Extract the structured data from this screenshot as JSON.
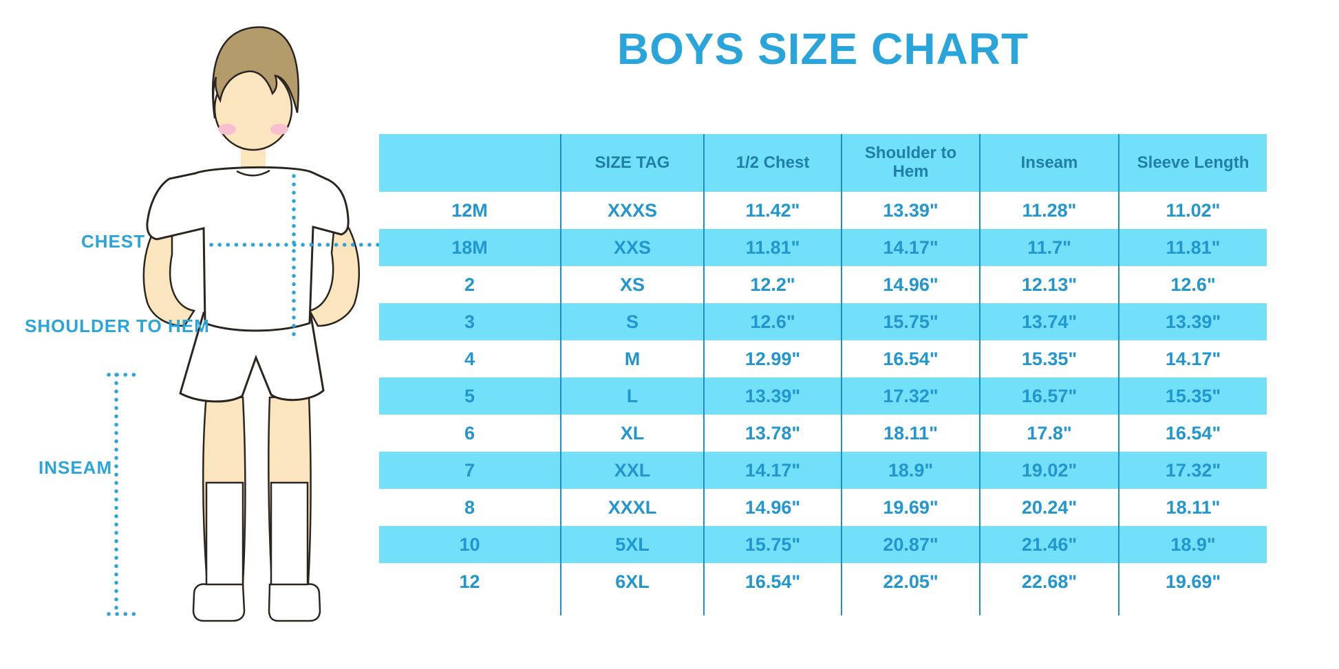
{
  "page_title": "BOYS SIZE CHART",
  "colors": {
    "accent_blue": "#29A5DC",
    "band_cyan": "#72E0F9",
    "header_text_blue": "#1F7FA9",
    "cell_text_blue": "#2196D1",
    "rule_blue": "#1E8FC6",
    "skin": "#FAE5BE",
    "hair_brown": "#B49B6C",
    "blush_pink": "#F8C0CE",
    "outline_dark": "#2B2520"
  },
  "diagram": {
    "chest_label": "CHEST",
    "shoulder_to_hem_label": "SHOULDER TO HEM",
    "inseam_label": "INSEAM"
  },
  "chart_data": {
    "type": "table",
    "title": "BOYS SIZE CHART",
    "columns": [
      "",
      "SIZE TAG",
      "1/2 Chest",
      "Shoulder to Hem",
      "Inseam",
      "Sleeve Length"
    ],
    "rows": [
      [
        "12M",
        "XXXS",
        "11.42\"",
        "13.39\"",
        "11.28\"",
        "11.02\""
      ],
      [
        "18M",
        "XXS",
        "11.81\"",
        "14.17\"",
        "11.7\"",
        "11.81\""
      ],
      [
        "2",
        "XS",
        "12.2\"",
        "14.96\"",
        "12.13\"",
        "12.6\""
      ],
      [
        "3",
        "S",
        "12.6\"",
        "15.75\"",
        "13.74\"",
        "13.39\""
      ],
      [
        "4",
        "M",
        "12.99\"",
        "16.54\"",
        "15.35\"",
        "14.17\""
      ],
      [
        "5",
        "L",
        "13.39\"",
        "17.32\"",
        "16.57\"",
        "15.35\""
      ],
      [
        "6",
        "XL",
        "13.78\"",
        "18.11\"",
        "17.8\"",
        "16.54\""
      ],
      [
        "7",
        "XXL",
        "14.17\"",
        "18.9\"",
        "19.02\"",
        "17.32\""
      ],
      [
        "8",
        "XXXL",
        "14.96\"",
        "19.69\"",
        "20.24\"",
        "18.11\""
      ],
      [
        "10",
        "5XL",
        "15.75\"",
        "20.87\"",
        "21.46\"",
        "18.9\""
      ],
      [
        "12",
        "6XL",
        "16.54\"",
        "22.05\"",
        "22.68\"",
        "19.69\""
      ]
    ]
  }
}
